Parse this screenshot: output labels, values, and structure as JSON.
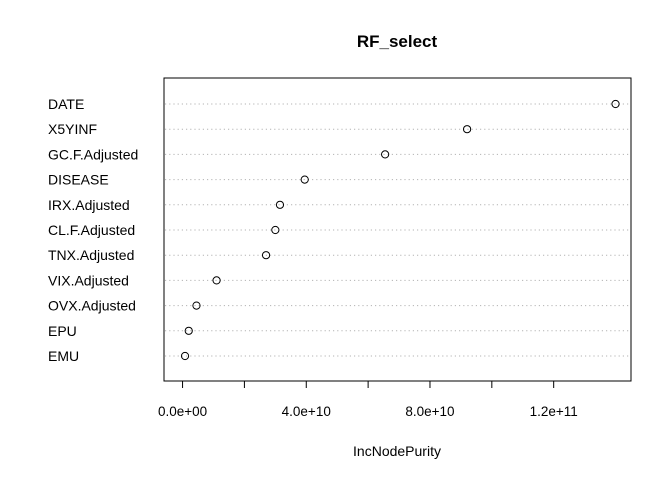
{
  "chart_data": {
    "type": "scatter",
    "title": "RF_select",
    "xlabel": "IncNodePurity",
    "ylabel": "",
    "categories": [
      "DATE",
      "X5YINF",
      "GC.F.Adjusted",
      "DISEASE",
      "IRX.Adjusted",
      "CL.F.Adjusted",
      "TNX.Adjusted",
      "VIX.Adjusted",
      "OVX.Adjusted",
      "EPU",
      "EMU"
    ],
    "values": [
      140000000000,
      92000000000,
      65500000000,
      39500000000,
      31500000000,
      30000000000,
      27000000000,
      11000000000,
      4500000000,
      2000000000,
      800000000
    ],
    "xlim": [
      -6000000000,
      145000000000
    ],
    "xticks": [
      0,
      40000000000,
      80000000000,
      120000000000
    ],
    "xtick_labels": [
      "0.0e+00",
      "4.0e+10",
      "8.0e+10",
      "1.2e+11"
    ],
    "grid": "dotted horizontal lines per category",
    "marker": "open circle"
  }
}
